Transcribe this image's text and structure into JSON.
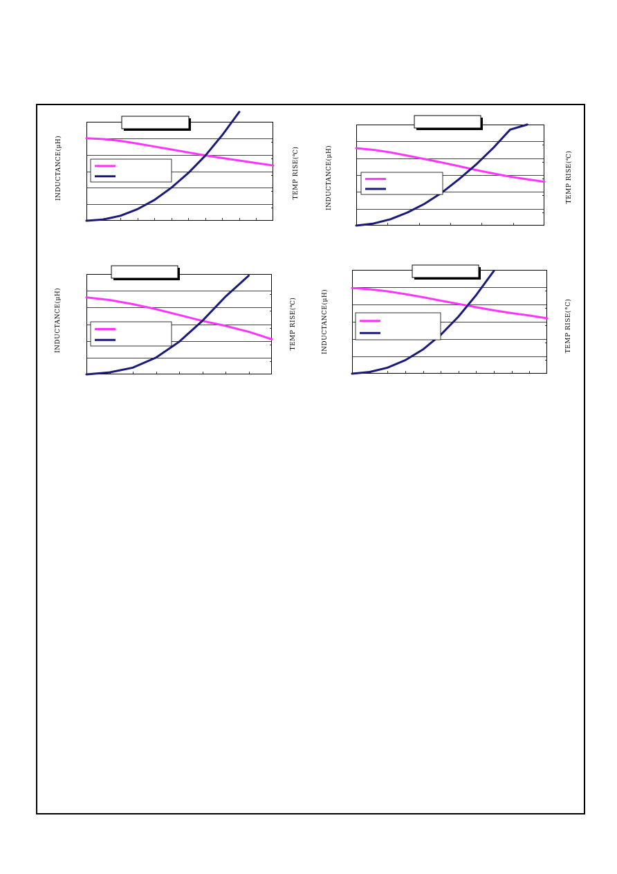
{
  "colors": {
    "inductance": "#ff33ff",
    "temp_rise": "#1a1a7a",
    "grid": "#000000"
  },
  "chart_data": [
    {
      "type": "line",
      "title": "",
      "ylabel_left": "INDUCTANCE(μH)",
      "ylabel_right": "TEMP RISE(℃)",
      "grid": true,
      "legend": "left",
      "x": [
        0,
        1,
        2,
        3,
        4,
        5,
        6,
        7,
        8,
        9,
        10,
        11
      ],
      "series": [
        {
          "key": "inductance",
          "values": [
            5.0,
            4.95,
            4.84,
            4.68,
            4.5,
            4.32,
            4.14,
            3.96,
            3.8,
            3.65,
            3.5,
            3.35
          ]
        },
        {
          "key": "temp_rise",
          "values": [
            0.0,
            0.08,
            0.3,
            0.7,
            1.26,
            2.0,
            2.9,
            3.95,
            5.2,
            6.6,
            null,
            null
          ]
        }
      ],
      "ylim": [
        0,
        6
      ],
      "xlim": [
        0,
        11
      ]
    },
    {
      "type": "line",
      "title": "",
      "ylabel_left": "INDUCTANCE(μH)",
      "ylabel_right": "TEMP RISE(℃)",
      "grid": true,
      "legend": "left",
      "x": [
        0,
        1,
        2,
        3,
        4,
        5,
        6,
        7,
        8,
        9,
        10,
        11
      ],
      "series": [
        {
          "key": "inductance",
          "values": [
            4.6,
            4.5,
            4.35,
            4.15,
            3.95,
            3.75,
            3.53,
            3.3,
            3.1,
            2.9,
            2.75,
            2.6
          ]
        },
        {
          "key": "temp_rise",
          "values": [
            0.0,
            0.12,
            0.38,
            0.78,
            1.3,
            1.95,
            2.75,
            3.62,
            4.6,
            5.7,
            6.0,
            null
          ]
        }
      ],
      "ylim": [
        0,
        6
      ],
      "xlim": [
        0,
        11
      ]
    },
    {
      "type": "line",
      "title": "",
      "ylabel_left": "INDUCTANCE(μH)",
      "ylabel_right": "TEMP RISE(℃)",
      "grid": true,
      "legend": "left",
      "x": [
        0,
        1,
        2,
        3,
        4,
        5,
        6,
        7,
        8
      ],
      "series": [
        {
          "key": "inductance",
          "values": [
            4.6,
            4.45,
            4.2,
            3.9,
            3.55,
            3.2,
            2.9,
            2.55,
            2.1
          ]
        },
        {
          "key": "temp_rise",
          "values": [
            0.0,
            0.12,
            0.4,
            1.0,
            1.95,
            3.2,
            4.65,
            5.9,
            null
          ]
        }
      ],
      "ylim": [
        0,
        6
      ],
      "xlim": [
        0,
        8
      ]
    },
    {
      "type": "line",
      "title": "",
      "ylabel_left": "INDUCTANCE(μH)",
      "ylabel_right": "TEMP RISE(°C)",
      "grid": true,
      "legend": "left",
      "x": [
        0,
        1,
        2,
        3,
        4,
        5,
        6,
        7,
        8,
        9,
        10,
        11
      ],
      "series": [
        {
          "key": "inductance",
          "values": [
            4.95,
            4.88,
            4.76,
            4.6,
            4.42,
            4.22,
            4.03,
            3.84,
            3.66,
            3.5,
            3.36,
            3.2
          ]
        },
        {
          "key": "temp_rise",
          "values": [
            0.0,
            0.1,
            0.35,
            0.78,
            1.4,
            2.25,
            3.3,
            4.55,
            5.95,
            null,
            null,
            null
          ]
        }
      ],
      "ylim": [
        0,
        6
      ],
      "xlim": [
        0,
        11
      ]
    }
  ]
}
